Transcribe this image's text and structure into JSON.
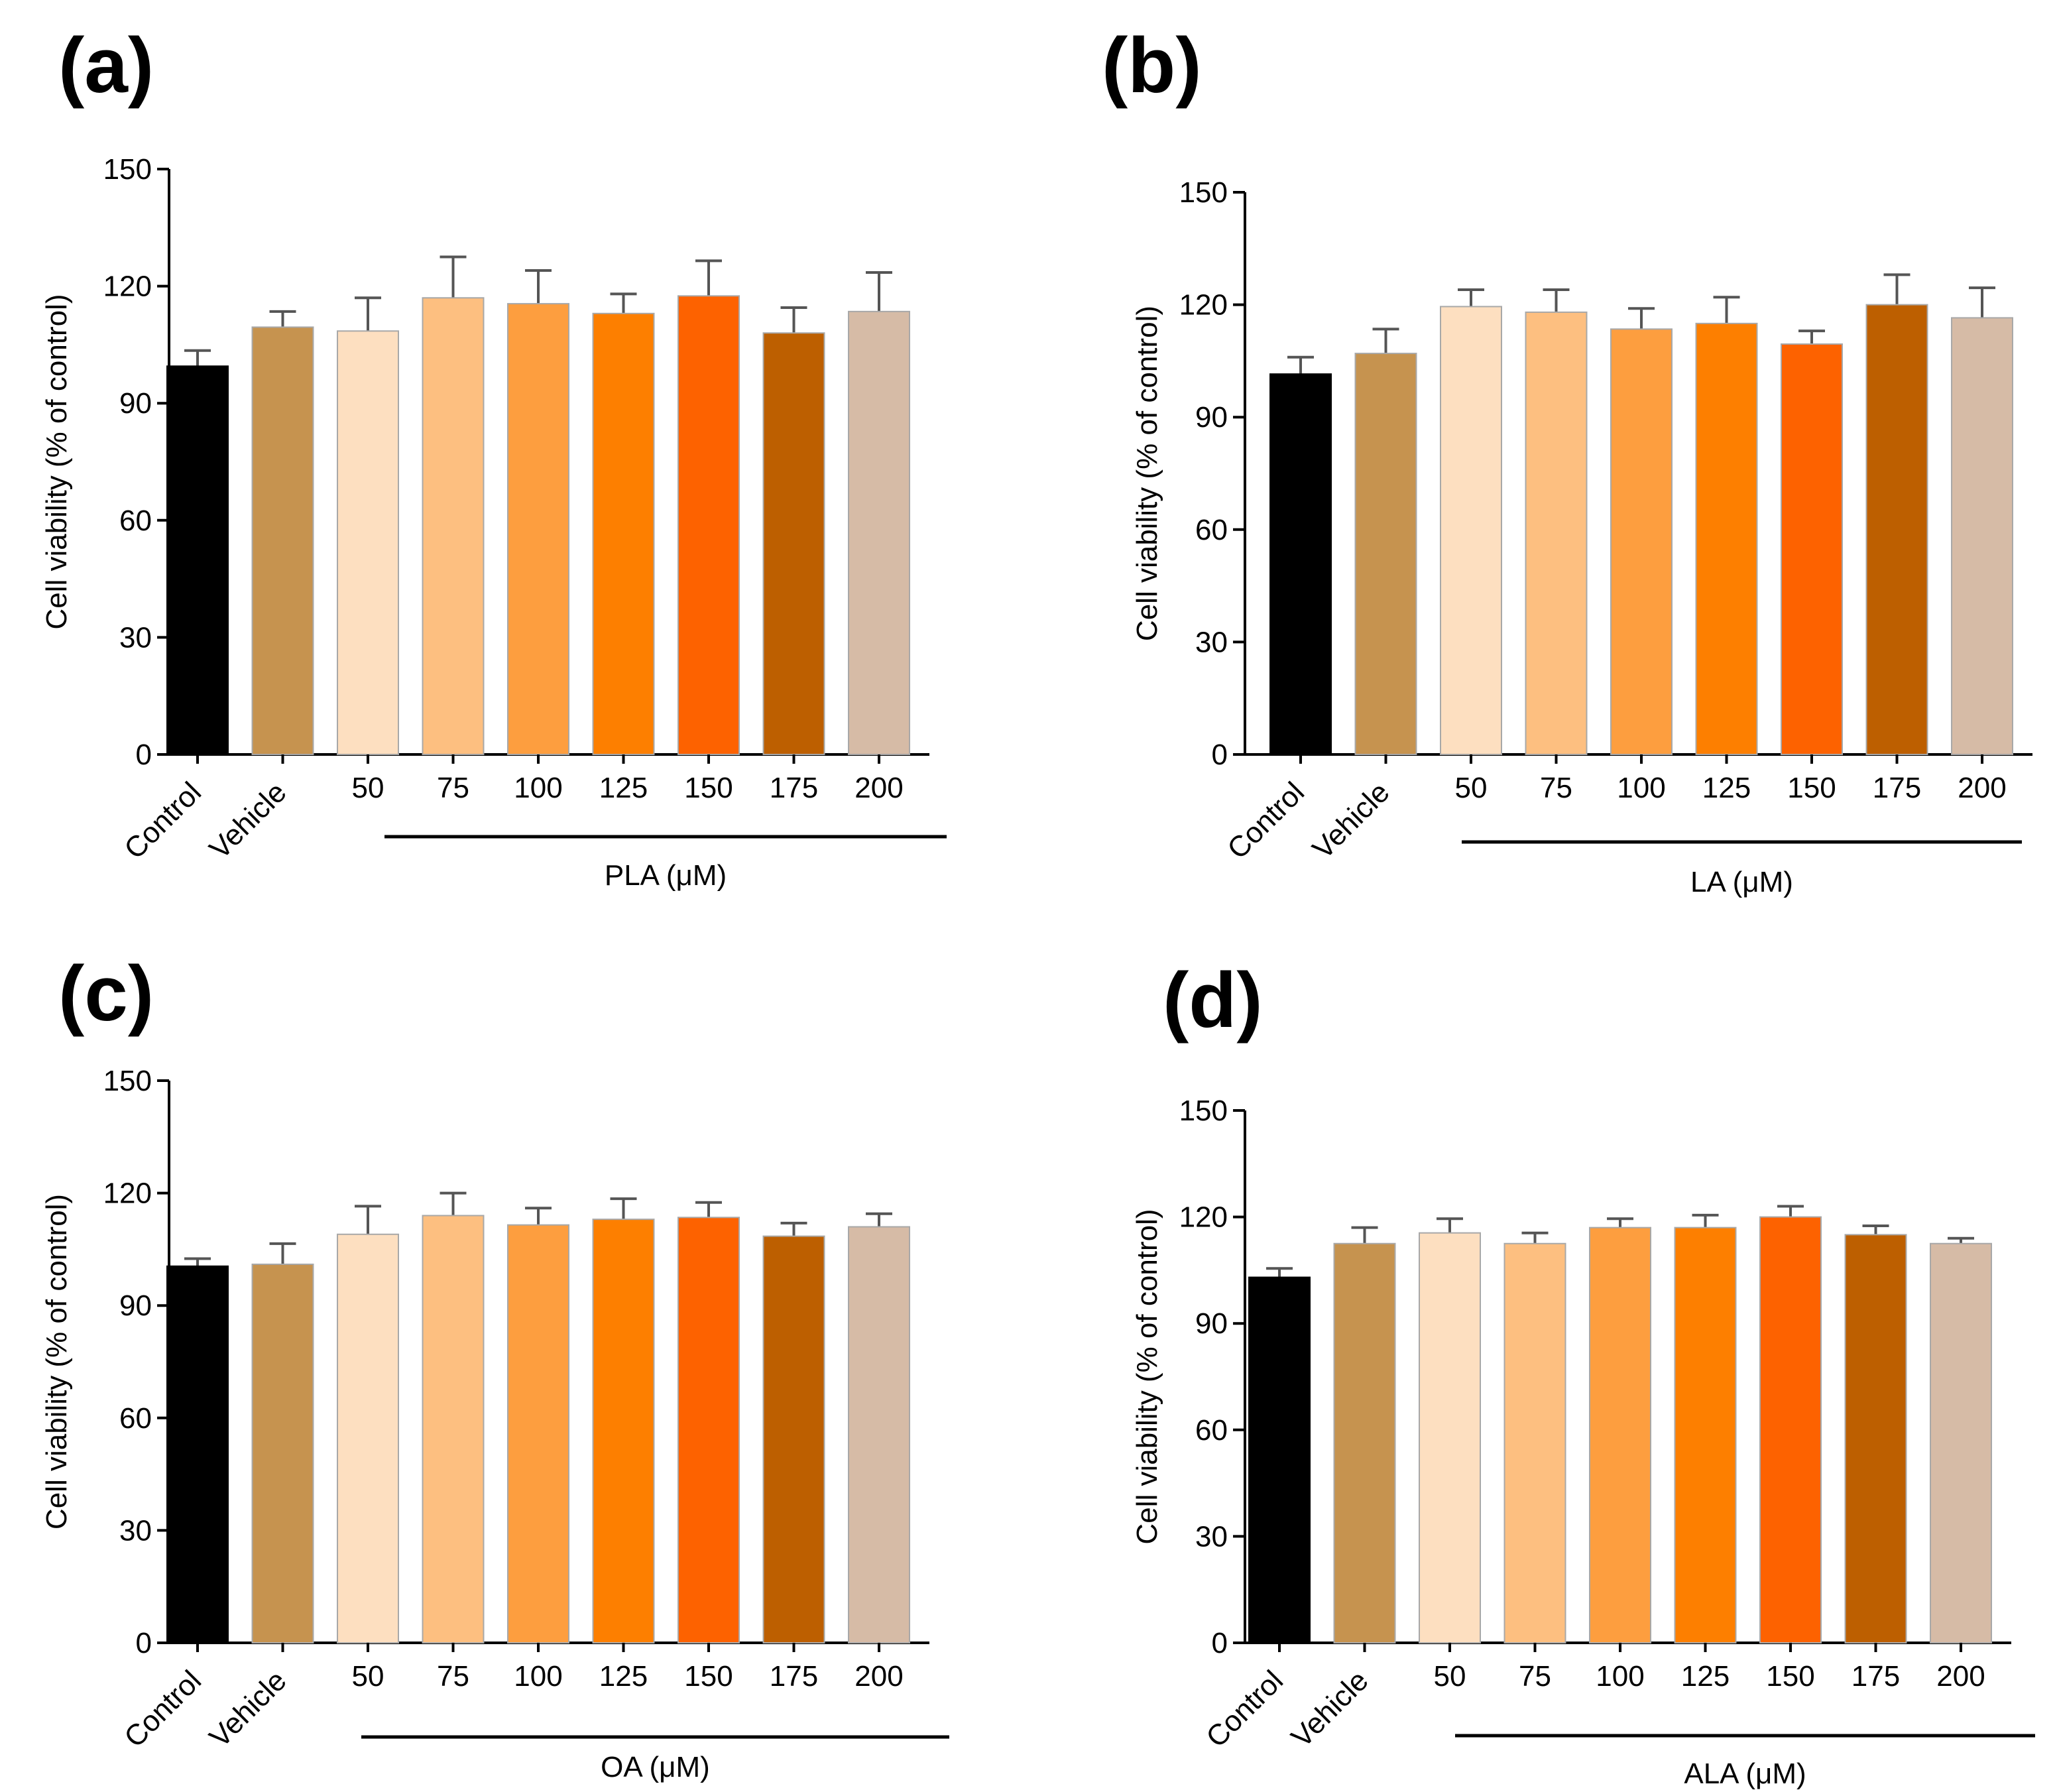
{
  "panels": [
    {
      "label": "(a)"
    },
    {
      "label": "(b)"
    },
    {
      "label": "(c)"
    },
    {
      "label": "(d)"
    }
  ],
  "colors": [
    "#000000",
    "#c6934f",
    "#fddfc0",
    "#fdbf80",
    "#fd9e3f",
    "#fd7f00",
    "#fd6200",
    "#bd5f00",
    "#d6bba6"
  ],
  "chart_data": [
    {
      "type": "bar",
      "title": "(a)",
      "categories": [
        "Control",
        "Vehicle",
        "50",
        "75",
        "100",
        "125",
        "150",
        "175",
        "200"
      ],
      "values": [
        99.5,
        109.5,
        108.5,
        117,
        115.5,
        113,
        117.5,
        108,
        113.5
      ],
      "errors": [
        4,
        4,
        8.5,
        10.5,
        8.5,
        5,
        9,
        6.5,
        10
      ],
      "ylabel": "Cell viability (% of control)",
      "group_label": "PLA (μM)",
      "ylim": [
        0,
        150
      ],
      "yticks": [
        0,
        30,
        60,
        90,
        120,
        150
      ]
    },
    {
      "type": "bar",
      "title": "(b)",
      "categories": [
        "Control",
        "Vehicle",
        "50",
        "75",
        "100",
        "125",
        "150",
        "175",
        "200"
      ],
      "values": [
        101.5,
        107,
        119.5,
        118,
        113.5,
        115,
        109.5,
        120,
        116.5
      ],
      "errors": [
        4.5,
        6.5,
        4.5,
        6,
        5.5,
        7,
        3.5,
        8,
        8
      ],
      "ylabel": "Cell viability (% of control)",
      "group_label": "LA (μM)",
      "ylim": [
        0,
        150
      ],
      "yticks": [
        0,
        30,
        60,
        90,
        120,
        150
      ]
    },
    {
      "type": "bar",
      "title": "(c)",
      "categories": [
        "Control",
        "Vehicle",
        "50",
        "75",
        "100",
        "125",
        "150",
        "175",
        "200"
      ],
      "values": [
        100.5,
        101,
        109,
        114,
        111.5,
        113,
        113.5,
        108.5,
        111
      ],
      "errors": [
        2,
        5.5,
        7.5,
        6,
        4.5,
        5.5,
        4,
        3.5,
        3.5
      ],
      "ylabel": "Cell viability (% of control)",
      "group_label": "OA (μM)",
      "ylim": [
        0,
        150
      ],
      "yticks": [
        0,
        30,
        60,
        90,
        120,
        150
      ]
    },
    {
      "type": "bar",
      "title": "(d)",
      "categories": [
        "Control",
        "Vehicle",
        "50",
        "75",
        "100",
        "125",
        "150",
        "175",
        "200"
      ],
      "values": [
        103,
        112.5,
        115.5,
        112.5,
        117,
        117,
        120,
        115,
        112.5
      ],
      "errors": [
        2.5,
        4.5,
        4,
        3,
        2.5,
        3.5,
        3,
        2.5,
        1.5
      ],
      "ylabel": "Cell viability (% of control)",
      "group_label": "ALA (μM)",
      "ylim": [
        0,
        150
      ],
      "yticks": [
        0,
        30,
        60,
        90,
        120,
        150
      ]
    }
  ]
}
